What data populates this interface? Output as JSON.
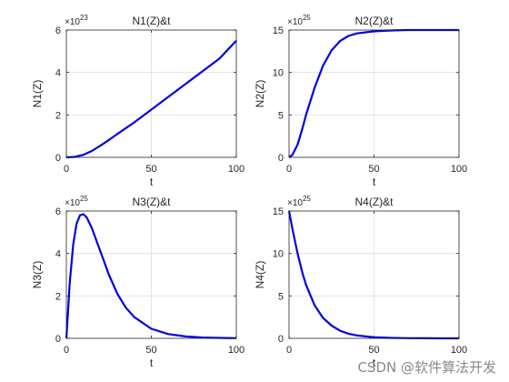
{
  "chart_data": [
    {
      "type": "line",
      "title": "N1(Z)&t",
      "xlabel": "t",
      "ylabel": "N1(Z)",
      "exponent": "23",
      "xlim": [
        0,
        100
      ],
      "ylim": [
        0,
        6
      ],
      "xticks": [
        0,
        50,
        100
      ],
      "yticks": [
        0,
        2,
        4,
        6
      ],
      "grid": true,
      "color": "#0000e6",
      "series": [
        {
          "x": [
            0,
            5,
            10,
            15,
            20,
            25,
            30,
            40,
            50,
            60,
            70,
            80,
            90,
            100
          ],
          "y": [
            0,
            0.02,
            0.12,
            0.3,
            0.55,
            0.82,
            1.1,
            1.65,
            2.25,
            2.85,
            3.45,
            4.05,
            4.65,
            5.5
          ]
        }
      ]
    },
    {
      "type": "line",
      "title": "N2(Z)&t",
      "xlabel": "t",
      "ylabel": "N2(Z)",
      "exponent": "25",
      "xlim": [
        0,
        100
      ],
      "ylim": [
        0,
        15
      ],
      "xticks": [
        0,
        50,
        100
      ],
      "yticks": [
        0,
        5,
        10,
        15
      ],
      "grid": true,
      "color": "#0000e6",
      "series": [
        {
          "x": [
            0,
            2,
            5,
            8,
            10,
            15,
            20,
            25,
            30,
            35,
            40,
            50,
            60,
            70,
            80,
            90,
            100
          ],
          "y": [
            0,
            0.3,
            1.5,
            3.5,
            5.0,
            8.2,
            10.8,
            12.6,
            13.7,
            14.3,
            14.6,
            14.85,
            14.95,
            15,
            15,
            15,
            15
          ]
        }
      ]
    },
    {
      "type": "line",
      "title": "N3(Z)&t",
      "xlabel": "t",
      "ylabel": "N3(Z)",
      "exponent": "25",
      "xlim": [
        0,
        100
      ],
      "ylim": [
        0,
        6
      ],
      "xticks": [
        0,
        50,
        100
      ],
      "yticks": [
        0,
        2,
        4,
        6
      ],
      "grid": true,
      "color": "#0000e6",
      "series": [
        {
          "x": [
            0,
            1,
            2,
            4,
            6,
            8,
            10,
            12,
            15,
            20,
            25,
            30,
            35,
            40,
            50,
            60,
            70,
            80,
            90,
            100
          ],
          "y": [
            0,
            1.3,
            2.6,
            4.4,
            5.4,
            5.8,
            5.85,
            5.7,
            5.2,
            4.1,
            3.0,
            2.1,
            1.45,
            1.0,
            0.45,
            0.2,
            0.09,
            0.04,
            0.02,
            0.01
          ]
        }
      ]
    },
    {
      "type": "line",
      "title": "N4(Z)&t",
      "xlabel": "t",
      "ylabel": "N4(Z)",
      "exponent": "25",
      "xlim": [
        0,
        100
      ],
      "ylim": [
        0,
        15
      ],
      "xticks": [
        0,
        50,
        100
      ],
      "yticks": [
        0,
        5,
        10,
        15
      ],
      "grid": true,
      "color": "#0000e6",
      "series": [
        {
          "x": [
            0,
            2,
            5,
            8,
            10,
            15,
            20,
            25,
            30,
            35,
            40,
            50,
            60,
            70,
            80,
            90,
            100
          ],
          "y": [
            15,
            12.9,
            10.0,
            7.6,
            6.3,
            3.9,
            2.4,
            1.5,
            0.9,
            0.55,
            0.34,
            0.12,
            0.05,
            0.02,
            0.01,
            0,
            0
          ]
        }
      ]
    }
  ],
  "watermark": "CSDN @软件算法开发"
}
